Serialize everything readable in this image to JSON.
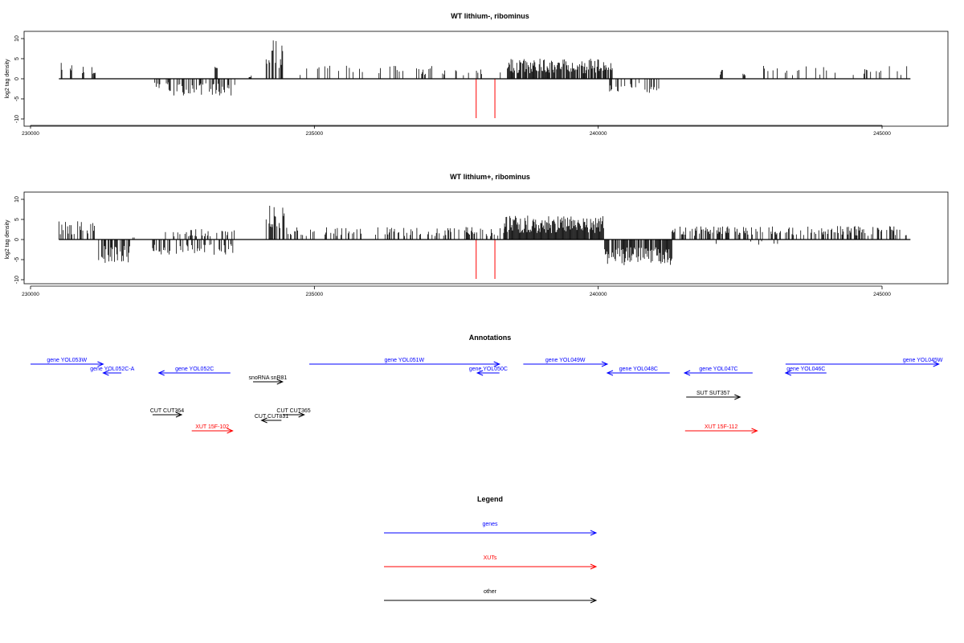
{
  "colors": {
    "gene": "#0000ff",
    "xut": "#ff0000",
    "other": "#000000",
    "signal": "#000000",
    "highlight": "#ff0000"
  },
  "chart_data": [
    {
      "type": "bar",
      "title": "WT lithium-, ribominus",
      "ylabel": "log2 tag density",
      "xlim": [
        230500,
        245500
      ],
      "ylim": [
        -10,
        10
      ],
      "yticks": [
        -10,
        -5,
        0,
        5,
        10
      ],
      "xticks": [
        230000,
        235000,
        240000,
        245000
      ],
      "xtick_labels": [
        "230000",
        "235000",
        "240000",
        "245000"
      ],
      "highlight_x": [
        237850,
        238180
      ],
      "regions": [
        {
          "x0": 230540,
          "x1": 230560,
          "v": 3.5,
          "density": 1.0
        },
        {
          "x0": 230700,
          "x1": 230730,
          "v": 3.8,
          "density": 1.0
        },
        {
          "x0": 230900,
          "x1": 230960,
          "v": 2.5,
          "density": 0.5
        },
        {
          "x0": 231080,
          "x1": 231120,
          "v": 2.8,
          "density": 0.5
        },
        {
          "x0": 231100,
          "x1": 231160,
          "v": 1.5,
          "density": 0.5
        },
        {
          "x0": 232150,
          "x1": 232450,
          "v": -2.0,
          "density": 0.2
        },
        {
          "x0": 232400,
          "x1": 233600,
          "v": -3.2,
          "density": 0.4
        },
        {
          "x0": 233250,
          "x1": 233300,
          "v": 2.3,
          "density": 1.0
        },
        {
          "x0": 233850,
          "x1": 233900,
          "v": 1.0,
          "density": 1.0
        },
        {
          "x0": 234150,
          "x1": 234250,
          "v": 4.0,
          "density": 0.4
        },
        {
          "x0": 234250,
          "x1": 234450,
          "v": 7.5,
          "density": 0.7
        },
        {
          "x0": 234750,
          "x1": 237600,
          "v": 2.6,
          "density": 0.15
        },
        {
          "x0": 237600,
          "x1": 238350,
          "v": 1.8,
          "density": 0.12
        },
        {
          "x0": 238400,
          "x1": 240250,
          "v": 3.9,
          "density": 0.9
        },
        {
          "x0": 240200,
          "x1": 241100,
          "v": -2.8,
          "density": 0.35
        },
        {
          "x0": 242150,
          "x1": 242200,
          "v": 2.0,
          "density": 1.0
        },
        {
          "x0": 242550,
          "x1": 242600,
          "v": 1.0,
          "density": 1.0
        },
        {
          "x0": 242900,
          "x1": 245450,
          "v": 2.5,
          "density": 0.15
        }
      ]
    },
    {
      "type": "bar",
      "title": "WT lithium+, ribominus",
      "ylabel": "log2 tag density",
      "xlim": [
        230500,
        245500
      ],
      "ylim": [
        -10,
        10
      ],
      "yticks": [
        -10,
        -5,
        0,
        5,
        10
      ],
      "xticks": [
        230000,
        235000,
        240000,
        245000
      ],
      "xtick_labels": [
        "230000",
        "235000",
        "240000",
        "245000"
      ],
      "highlight_x": [
        237850,
        238180
      ],
      "regions": [
        {
          "x0": 230500,
          "x1": 231200,
          "v": 3.5,
          "density": 0.5
        },
        {
          "x0": 231200,
          "x1": 231750,
          "v": -4.5,
          "density": 0.6
        },
        {
          "x0": 231750,
          "x1": 232150,
          "v": 1.0,
          "density": 0.1
        },
        {
          "x0": 232150,
          "x1": 233600,
          "v": -3.0,
          "density": 0.4
        },
        {
          "x0": 232300,
          "x1": 233600,
          "v": 2.2,
          "density": 0.25
        },
        {
          "x0": 234150,
          "x1": 234480,
          "v": 7.0,
          "density": 0.7
        },
        {
          "x0": 234500,
          "x1": 238350,
          "v": 2.4,
          "density": 0.3
        },
        {
          "x0": 238350,
          "x1": 240100,
          "v": 4.6,
          "density": 0.95
        },
        {
          "x0": 240100,
          "x1": 241300,
          "v": -5.0,
          "density": 0.8
        },
        {
          "x0": 241300,
          "x1": 245450,
          "v": 2.6,
          "density": 0.45
        },
        {
          "x0": 242000,
          "x1": 243800,
          "v": -1.2,
          "density": 0.05
        }
      ]
    }
  ],
  "annotations": {
    "title": "Annotations",
    "features": [
      {
        "label": "gene YOL053W",
        "type": "gene",
        "start": 230000,
        "end": 231280,
        "strand": "+",
        "row": 0
      },
      {
        "label": "gene YOL052C-A",
        "type": "gene",
        "start": 231280,
        "end": 231600,
        "strand": "-",
        "row": 1
      },
      {
        "label": "gene YOL052C",
        "type": "gene",
        "start": 232260,
        "end": 233520,
        "strand": "-",
        "row": 1
      },
      {
        "label": "gene YOL051W",
        "type": "gene",
        "start": 234910,
        "end": 238260,
        "strand": "+",
        "row": 0
      },
      {
        "label": "gene YOL050C",
        "type": "gene",
        "start": 237870,
        "end": 238260,
        "strand": "-",
        "row": 1
      },
      {
        "label": "gene YOL049W",
        "type": "gene",
        "start": 238680,
        "end": 240160,
        "strand": "+",
        "row": 0
      },
      {
        "label": "gene YOL048C",
        "type": "gene",
        "start": 240160,
        "end": 241260,
        "strand": "-",
        "row": 1
      },
      {
        "label": "gene YOL047C",
        "type": "gene",
        "start": 241520,
        "end": 242720,
        "strand": "-",
        "row": 1
      },
      {
        "label": "gene YOL046C",
        "type": "gene",
        "start": 243300,
        "end": 244020,
        "strand": "-",
        "row": 1
      },
      {
        "label": "gene YOL045W",
        "type": "gene",
        "start": 243300,
        "end": 246000,
        "strand": "+",
        "row": 0
      },
      {
        "label": "snoRNA snR81",
        "type": "other",
        "start": 233920,
        "end": 234440,
        "strand": "+",
        "row": 2
      },
      {
        "label": "SUT SUT357",
        "type": "other",
        "start": 241550,
        "end": 242500,
        "strand": "+",
        "row": 3
      },
      {
        "label": "CUT CUT364",
        "type": "other",
        "start": 232150,
        "end": 232660,
        "strand": "+",
        "row": 4
      },
      {
        "label": "CUT CUT365",
        "type": "other",
        "start": 234450,
        "end": 234820,
        "strand": "+",
        "row": 4
      },
      {
        "label": "CUT CUT831",
        "type": "other",
        "start": 234070,
        "end": 234420,
        "strand": "-",
        "row": 5
      },
      {
        "label": "XUT 15F-102",
        "type": "xut",
        "start": 232840,
        "end": 233560,
        "strand": "+",
        "row": 6
      },
      {
        "label": "XUT 15F-112",
        "type": "xut",
        "start": 241530,
        "end": 242800,
        "strand": "+",
        "row": 6
      }
    ]
  },
  "legend": {
    "title": "Legend",
    "items": [
      {
        "label": "genes",
        "type": "gene"
      },
      {
        "label": "XUTs",
        "type": "xut"
      },
      {
        "label": "other",
        "type": "other"
      }
    ]
  }
}
